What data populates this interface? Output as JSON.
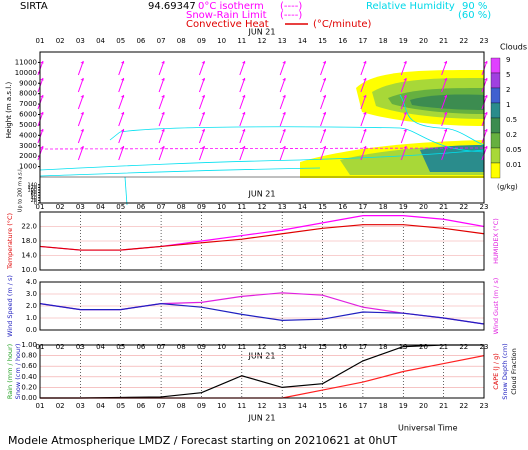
{
  "station": "SIRTA",
  "station_code": "94.69347",
  "legend": {
    "isotherm": "0°C isotherm",
    "isotherm_style": "(----)",
    "snow_rain": "Snow-Rain Limit",
    "snow_rain_style": "(----)",
    "convective": "Convective Heat",
    "convective_units": "(°C/minute)",
    "humidity": "Relative Humidity",
    "humidity_high": "90 %",
    "humidity_low": "(60 %)"
  },
  "date_label": "JUN 21",
  "time_title": "Universal Time",
  "footer": "Modele Atmospherique LMDZ / Forecast starting on 20210621 at 0hUT",
  "time_axis": {
    "xlim": [
      1,
      23
    ],
    "xticks": [
      {
        "value": 1,
        "label": "01"
      },
      {
        "value": 2,
        "label": "02"
      },
      {
        "value": 3,
        "label": "03"
      },
      {
        "value": 4,
        "label": "04"
      },
      {
        "value": 5,
        "label": "05"
      },
      {
        "value": 6,
        "label": "06"
      },
      {
        "value": 7,
        "label": "07"
      },
      {
        "value": 8,
        "label": "08"
      },
      {
        "value": 9,
        "label": "09"
      },
      10,
      11,
      12,
      13,
      14,
      15,
      16,
      17,
      18,
      19,
      20,
      21,
      22,
      23
    ]
  },
  "chart_data": [
    {
      "type": "cloud",
      "ylabel": "Height (m a.s.l.)",
      "ylabel_low": "Up to 200 m a.s.l.",
      "ylim": [
        0,
        12000
      ],
      "yticks": [
        1000,
        2000,
        3000,
        4000,
        5000,
        6000,
        7000,
        8000,
        9000,
        10000,
        11000
      ],
      "low_ylim": [
        0,
        200
      ],
      "low_yticks": [
        0,
        20,
        40,
        60,
        80,
        100,
        120,
        140
      ],
      "legend_title": "Clouds",
      "legend_units": "(g/kg)",
      "levels": [
        "9",
        "5",
        "2",
        "1",
        "0.5",
        "0.2",
        "0.05",
        "0.01"
      ],
      "level_colors": [
        "#e040ff",
        "#a040e0",
        "#4060d0",
        "#2a8c8c",
        "#3c8c50",
        "#66b040",
        "#a8d838",
        "#ffff00"
      ]
    },
    {
      "type": "line",
      "ylabel": "Temperature (°C)",
      "y2label": "HUMIDEX (°C)",
      "ylim": [
        10,
        26
      ],
      "yticks": [
        {
          "value": 10,
          "label": "10.0"
        },
        {
          "value": 14,
          "label": "14.0"
        },
        {
          "value": 18,
          "label": "18.0"
        },
        {
          "value": 22,
          "label": "22.0"
        }
      ],
      "x": [
        1,
        3,
        5,
        7,
        9,
        11,
        13,
        15,
        17,
        19,
        21,
        23
      ],
      "series": [
        {
          "color": "#ff00ff",
          "values": [
            16.5,
            15.5,
            15.5,
            16.5,
            18,
            19.5,
            21,
            23,
            25,
            25,
            24,
            22
          ]
        },
        {
          "color": "#e00000",
          "values": [
            16.5,
            15.5,
            15.5,
            16.5,
            17.5,
            18.5,
            20,
            21.5,
            22.5,
            22.5,
            21.5,
            20
          ]
        }
      ]
    },
    {
      "type": "line",
      "ylabel": "Wind Speed (m / s)",
      "y2label": "Wind Gust (m / s)",
      "ylim": [
        0,
        4
      ],
      "yticks": [
        {
          "value": 0,
          "label": "0.0"
        },
        {
          "value": 1,
          "label": "1.0"
        },
        {
          "value": 2,
          "label": "2.0"
        },
        {
          "value": 3,
          "label": "3.0"
        },
        {
          "value": 4,
          "label": "4.0"
        }
      ],
      "x": [
        1,
        3,
        5,
        7,
        9,
        11,
        13,
        15,
        17,
        19,
        21,
        23
      ],
      "series": [
        {
          "color": "#e020e0",
          "values": [
            2.2,
            1.7,
            1.7,
            2.2,
            2.3,
            2.8,
            3.1,
            2.9,
            1.9,
            1.4,
            1.0,
            0.5
          ]
        },
        {
          "color": "#2020c0",
          "values": [
            2.2,
            1.7,
            1.7,
            2.2,
            1.9,
            1.3,
            0.8,
            0.9,
            1.5,
            1.4,
            1.0,
            0.5
          ]
        }
      ]
    },
    {
      "type": "line",
      "ylabel": "Rain (mm / hour)",
      "ylabel2": "Snow (cm / hour)",
      "y2label": "CAPE (J / g)",
      "y2label2": "Snow Depth (cm)",
      "y2label3": "Cloud Fraction",
      "ylim": [
        0,
        1
      ],
      "yticks": [
        {
          "value": 0,
          "label": "0.00"
        },
        {
          "value": 0.2,
          "label": "0.20"
        },
        {
          "value": 0.4,
          "label": "0.40"
        },
        {
          "value": 0.6,
          "label": "0.60"
        },
        {
          "value": 0.8,
          "label": "0.80"
        },
        {
          "value": 1,
          "label": "1.00"
        }
      ],
      "x": [
        1,
        3,
        5,
        7,
        9,
        11,
        13,
        15,
        17,
        19,
        21,
        23
      ],
      "series": [
        {
          "color": "#000000",
          "values": [
            0,
            0,
            0.01,
            0.02,
            0.1,
            0.42,
            0.2,
            0.27,
            0.7,
            0.97,
            1,
            1
          ]
        },
        {
          "color": "#ff2020",
          "values": [
            0,
            0,
            0,
            0,
            0,
            0,
            0,
            0.15,
            0.3,
            0.5,
            0.65,
            0.8
          ]
        }
      ]
    }
  ]
}
